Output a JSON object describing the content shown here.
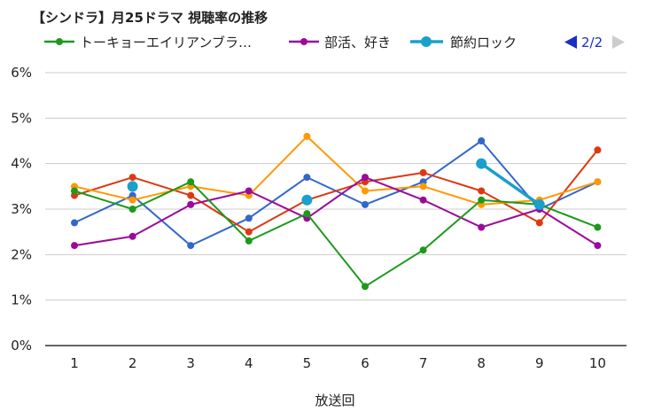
{
  "chart_data": {
    "type": "line",
    "title": "【シンドラ】月25ドラマ 視聴率の推移",
    "xlabel": "放送回",
    "ylabel": "",
    "x": [
      1,
      2,
      3,
      4,
      5,
      6,
      7,
      8,
      9,
      10
    ],
    "ylim": [
      0,
      6
    ],
    "y_ticks": [
      0,
      1,
      2,
      3,
      4,
      5,
      6
    ],
    "y_tick_labels": [
      "0%",
      "1%",
      "2%",
      "3%",
      "4%",
      "5%",
      "6%"
    ],
    "grid": "horizontal",
    "legend_position": "top",
    "legend": {
      "entries": [
        "トーキョーエイリアンブラ…",
        "部活、好き",
        "節約ロック"
      ],
      "page_indicator": "2/2"
    },
    "series": [
      {
        "name": "トーキョーエイリアンブラ…",
        "color": "#1b9a1b",
        "values": [
          3.4,
          3.0,
          3.6,
          2.3,
          2.9,
          1.3,
          2.1,
          3.2,
          3.1,
          2.6
        ]
      },
      {
        "name": "部活、好き",
        "color": "#9b0a9b",
        "values": [
          2.2,
          2.4,
          3.1,
          3.4,
          2.8,
          3.7,
          3.2,
          2.6,
          3.0,
          2.2
        ]
      },
      {
        "name": "節約ロック",
        "color": "#1aa0cc",
        "values": [
          null,
          3.5,
          null,
          null,
          3.2,
          null,
          null,
          4.0,
          3.1,
          null
        ]
      },
      {
        "name": "",
        "color": "#3366cc",
        "values": [
          2.7,
          3.3,
          2.2,
          2.8,
          3.7,
          3.1,
          3.6,
          4.5,
          3.0,
          3.6
        ]
      },
      {
        "name": "",
        "color": "#dc3912",
        "values": [
          3.3,
          3.7,
          3.3,
          2.5,
          3.2,
          3.6,
          3.8,
          3.4,
          2.7,
          4.3
        ]
      },
      {
        "name": "",
        "color": "#ff9900",
        "values": [
          3.5,
          3.2,
          3.5,
          3.3,
          4.6,
          3.4,
          3.5,
          3.1,
          3.2,
          3.6
        ]
      }
    ]
  }
}
